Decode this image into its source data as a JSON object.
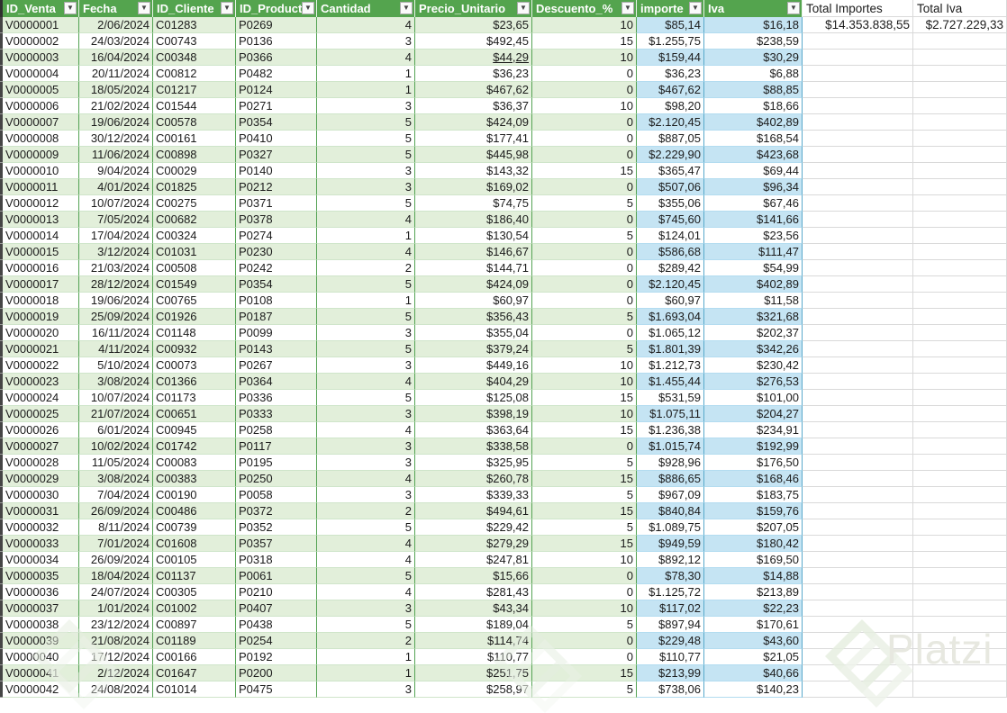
{
  "colors": {
    "header_green": "#54A44E",
    "band_green": "#E2EFDA",
    "band_blue": "#C5E4F3",
    "border_green": "#54A354",
    "border_blue": "#58A9CB",
    "grid_gray": "#D9D9D9"
  },
  "watermark": {
    "text": "Platzi"
  },
  "table": {
    "columns": [
      {
        "key": "edge",
        "label": "",
        "width": 3,
        "type": "edge",
        "align": "left",
        "filter": false
      },
      {
        "key": "id_venta",
        "label": "ID_Venta",
        "width": 85,
        "type": "green",
        "align": "left",
        "filter": true
      },
      {
        "key": "fecha",
        "label": "Fecha",
        "width": 82,
        "type": "green",
        "align": "right",
        "filter": true
      },
      {
        "key": "id_cliente",
        "label": "ID_Cliente",
        "width": 92,
        "type": "green",
        "align": "left",
        "filter": true
      },
      {
        "key": "id_producto",
        "label": "ID_Producto",
        "width": 90,
        "type": "green",
        "align": "left",
        "filter": true
      },
      {
        "key": "cantidad",
        "label": "Cantidad",
        "width": 109,
        "type": "green",
        "align": "right",
        "filter": true
      },
      {
        "key": "precio",
        "label": "Precio_Unitario",
        "width": 130,
        "type": "green",
        "align": "right",
        "filter": true
      },
      {
        "key": "descuento",
        "label": "Descuento_%",
        "width": 116,
        "type": "green",
        "align": "right",
        "filter": true
      },
      {
        "key": "importe",
        "label": "importe",
        "width": 75,
        "type": "blue",
        "align": "right",
        "filter": true
      },
      {
        "key": "iva",
        "label": "Iva",
        "width": 109,
        "type": "blue",
        "align": "right",
        "filter": true
      },
      {
        "key": "total_importes",
        "label": "Total Importes",
        "width": 123,
        "type": "total",
        "align": "left",
        "filter": false
      },
      {
        "key": "total_iva",
        "label": "Total Iva",
        "width": 104,
        "type": "total",
        "align": "left",
        "filter": false
      }
    ],
    "totals": {
      "total_importes": "$14.353.838,55",
      "total_iva": "$2.727.229,33"
    },
    "underline_cell": {
      "row": 2,
      "key": "precio"
    },
    "rows": [
      {
        "id_venta": "V0000001",
        "fecha": "2/06/2024",
        "id_cliente": "C01283",
        "id_producto": "P0269",
        "cantidad": "4",
        "precio": "$23,65",
        "descuento": "10",
        "importe": "$85,14",
        "iva": "$16,18"
      },
      {
        "id_venta": "V0000002",
        "fecha": "24/03/2024",
        "id_cliente": "C00743",
        "id_producto": "P0136",
        "cantidad": "3",
        "precio": "$492,45",
        "descuento": "15",
        "importe": "$1.255,75",
        "iva": "$238,59"
      },
      {
        "id_venta": "V0000003",
        "fecha": "16/04/2024",
        "id_cliente": "C00348",
        "id_producto": "P0366",
        "cantidad": "4",
        "precio": "$44,29",
        "descuento": "10",
        "importe": "$159,44",
        "iva": "$30,29"
      },
      {
        "id_venta": "V0000004",
        "fecha": "20/11/2024",
        "id_cliente": "C00812",
        "id_producto": "P0482",
        "cantidad": "1",
        "precio": "$36,23",
        "descuento": "0",
        "importe": "$36,23",
        "iva": "$6,88"
      },
      {
        "id_venta": "V0000005",
        "fecha": "18/05/2024",
        "id_cliente": "C01217",
        "id_producto": "P0124",
        "cantidad": "1",
        "precio": "$467,62",
        "descuento": "0",
        "importe": "$467,62",
        "iva": "$88,85"
      },
      {
        "id_venta": "V0000006",
        "fecha": "21/02/2024",
        "id_cliente": "C01544",
        "id_producto": "P0271",
        "cantidad": "3",
        "precio": "$36,37",
        "descuento": "10",
        "importe": "$98,20",
        "iva": "$18,66"
      },
      {
        "id_venta": "V0000007",
        "fecha": "19/06/2024",
        "id_cliente": "C00578",
        "id_producto": "P0354",
        "cantidad": "5",
        "precio": "$424,09",
        "descuento": "0",
        "importe": "$2.120,45",
        "iva": "$402,89"
      },
      {
        "id_venta": "V0000008",
        "fecha": "30/12/2024",
        "id_cliente": "C00161",
        "id_producto": "P0410",
        "cantidad": "5",
        "precio": "$177,41",
        "descuento": "0",
        "importe": "$887,05",
        "iva": "$168,54"
      },
      {
        "id_venta": "V0000009",
        "fecha": "11/06/2024",
        "id_cliente": "C00898",
        "id_producto": "P0327",
        "cantidad": "5",
        "precio": "$445,98",
        "descuento": "0",
        "importe": "$2.229,90",
        "iva": "$423,68"
      },
      {
        "id_venta": "V0000010",
        "fecha": "9/04/2024",
        "id_cliente": "C00029",
        "id_producto": "P0140",
        "cantidad": "3",
        "precio": "$143,32",
        "descuento": "15",
        "importe": "$365,47",
        "iva": "$69,44"
      },
      {
        "id_venta": "V0000011",
        "fecha": "4/01/2024",
        "id_cliente": "C01825",
        "id_producto": "P0212",
        "cantidad": "3",
        "precio": "$169,02",
        "descuento": "0",
        "importe": "$507,06",
        "iva": "$96,34"
      },
      {
        "id_venta": "V0000012",
        "fecha": "10/07/2024",
        "id_cliente": "C00275",
        "id_producto": "P0371",
        "cantidad": "5",
        "precio": "$74,75",
        "descuento": "5",
        "importe": "$355,06",
        "iva": "$67,46"
      },
      {
        "id_venta": "V0000013",
        "fecha": "7/05/2024",
        "id_cliente": "C00682",
        "id_producto": "P0378",
        "cantidad": "4",
        "precio": "$186,40",
        "descuento": "0",
        "importe": "$745,60",
        "iva": "$141,66"
      },
      {
        "id_venta": "V0000014",
        "fecha": "17/04/2024",
        "id_cliente": "C00324",
        "id_producto": "P0274",
        "cantidad": "1",
        "precio": "$130,54",
        "descuento": "5",
        "importe": "$124,01",
        "iva": "$23,56"
      },
      {
        "id_venta": "V0000015",
        "fecha": "3/12/2024",
        "id_cliente": "C01031",
        "id_producto": "P0230",
        "cantidad": "4",
        "precio": "$146,67",
        "descuento": "0",
        "importe": "$586,68",
        "iva": "$111,47"
      },
      {
        "id_venta": "V0000016",
        "fecha": "21/03/2024",
        "id_cliente": "C00508",
        "id_producto": "P0242",
        "cantidad": "2",
        "precio": "$144,71",
        "descuento": "0",
        "importe": "$289,42",
        "iva": "$54,99"
      },
      {
        "id_venta": "V0000017",
        "fecha": "28/12/2024",
        "id_cliente": "C01549",
        "id_producto": "P0354",
        "cantidad": "5",
        "precio": "$424,09",
        "descuento": "0",
        "importe": "$2.120,45",
        "iva": "$402,89"
      },
      {
        "id_venta": "V0000018",
        "fecha": "19/06/2024",
        "id_cliente": "C00765",
        "id_producto": "P0108",
        "cantidad": "1",
        "precio": "$60,97",
        "descuento": "0",
        "importe": "$60,97",
        "iva": "$11,58"
      },
      {
        "id_venta": "V0000019",
        "fecha": "25/09/2024",
        "id_cliente": "C01926",
        "id_producto": "P0187",
        "cantidad": "5",
        "precio": "$356,43",
        "descuento": "5",
        "importe": "$1.693,04",
        "iva": "$321,68"
      },
      {
        "id_venta": "V0000020",
        "fecha": "16/11/2024",
        "id_cliente": "C01148",
        "id_producto": "P0099",
        "cantidad": "3",
        "precio": "$355,04",
        "descuento": "0",
        "importe": "$1.065,12",
        "iva": "$202,37"
      },
      {
        "id_venta": "V0000021",
        "fecha": "4/11/2024",
        "id_cliente": "C00932",
        "id_producto": "P0143",
        "cantidad": "5",
        "precio": "$379,24",
        "descuento": "5",
        "importe": "$1.801,39",
        "iva": "$342,26"
      },
      {
        "id_venta": "V0000022",
        "fecha": "5/10/2024",
        "id_cliente": "C00073",
        "id_producto": "P0267",
        "cantidad": "3",
        "precio": "$449,16",
        "descuento": "10",
        "importe": "$1.212,73",
        "iva": "$230,42"
      },
      {
        "id_venta": "V0000023",
        "fecha": "3/08/2024",
        "id_cliente": "C01366",
        "id_producto": "P0364",
        "cantidad": "4",
        "precio": "$404,29",
        "descuento": "10",
        "importe": "$1.455,44",
        "iva": "$276,53"
      },
      {
        "id_venta": "V0000024",
        "fecha": "10/07/2024",
        "id_cliente": "C01173",
        "id_producto": "P0336",
        "cantidad": "5",
        "precio": "$125,08",
        "descuento": "15",
        "importe": "$531,59",
        "iva": "$101,00"
      },
      {
        "id_venta": "V0000025",
        "fecha": "21/07/2024",
        "id_cliente": "C00651",
        "id_producto": "P0333",
        "cantidad": "3",
        "precio": "$398,19",
        "descuento": "10",
        "importe": "$1.075,11",
        "iva": "$204,27"
      },
      {
        "id_venta": "V0000026",
        "fecha": "6/01/2024",
        "id_cliente": "C00945",
        "id_producto": "P0258",
        "cantidad": "4",
        "precio": "$363,64",
        "descuento": "15",
        "importe": "$1.236,38",
        "iva": "$234,91"
      },
      {
        "id_venta": "V0000027",
        "fecha": "10/02/2024",
        "id_cliente": "C01742",
        "id_producto": "P0117",
        "cantidad": "3",
        "precio": "$338,58",
        "descuento": "0",
        "importe": "$1.015,74",
        "iva": "$192,99"
      },
      {
        "id_venta": "V0000028",
        "fecha": "11/05/2024",
        "id_cliente": "C00083",
        "id_producto": "P0195",
        "cantidad": "3",
        "precio": "$325,95",
        "descuento": "5",
        "importe": "$928,96",
        "iva": "$176,50"
      },
      {
        "id_venta": "V0000029",
        "fecha": "3/08/2024",
        "id_cliente": "C00383",
        "id_producto": "P0250",
        "cantidad": "4",
        "precio": "$260,78",
        "descuento": "15",
        "importe": "$886,65",
        "iva": "$168,46"
      },
      {
        "id_venta": "V0000030",
        "fecha": "7/04/2024",
        "id_cliente": "C00190",
        "id_producto": "P0058",
        "cantidad": "3",
        "precio": "$339,33",
        "descuento": "5",
        "importe": "$967,09",
        "iva": "$183,75"
      },
      {
        "id_venta": "V0000031",
        "fecha": "26/09/2024",
        "id_cliente": "C00486",
        "id_producto": "P0372",
        "cantidad": "2",
        "precio": "$494,61",
        "descuento": "15",
        "importe": "$840,84",
        "iva": "$159,76"
      },
      {
        "id_venta": "V0000032",
        "fecha": "8/11/2024",
        "id_cliente": "C00739",
        "id_producto": "P0352",
        "cantidad": "5",
        "precio": "$229,42",
        "descuento": "5",
        "importe": "$1.089,75",
        "iva": "$207,05"
      },
      {
        "id_venta": "V0000033",
        "fecha": "7/01/2024",
        "id_cliente": "C01608",
        "id_producto": "P0357",
        "cantidad": "4",
        "precio": "$279,29",
        "descuento": "15",
        "importe": "$949,59",
        "iva": "$180,42"
      },
      {
        "id_venta": "V0000034",
        "fecha": "26/09/2024",
        "id_cliente": "C00105",
        "id_producto": "P0318",
        "cantidad": "4",
        "precio": "$247,81",
        "descuento": "10",
        "importe": "$892,12",
        "iva": "$169,50"
      },
      {
        "id_venta": "V0000035",
        "fecha": "18/04/2024",
        "id_cliente": "C01137",
        "id_producto": "P0061",
        "cantidad": "5",
        "precio": "$15,66",
        "descuento": "0",
        "importe": "$78,30",
        "iva": "$14,88"
      },
      {
        "id_venta": "V0000036",
        "fecha": "24/07/2024",
        "id_cliente": "C00305",
        "id_producto": "P0210",
        "cantidad": "4",
        "precio": "$281,43",
        "descuento": "0",
        "importe": "$1.125,72",
        "iva": "$213,89"
      },
      {
        "id_venta": "V0000037",
        "fecha": "1/01/2024",
        "id_cliente": "C01002",
        "id_producto": "P0407",
        "cantidad": "3",
        "precio": "$43,34",
        "descuento": "10",
        "importe": "$117,02",
        "iva": "$22,23"
      },
      {
        "id_venta": "V0000038",
        "fecha": "23/12/2024",
        "id_cliente": "C00897",
        "id_producto": "P0438",
        "cantidad": "5",
        "precio": "$189,04",
        "descuento": "5",
        "importe": "$897,94",
        "iva": "$170,61"
      },
      {
        "id_venta": "V0000039",
        "fecha": "21/08/2024",
        "id_cliente": "C01189",
        "id_producto": "P0254",
        "cantidad": "2",
        "precio": "$114,74",
        "descuento": "0",
        "importe": "$229,48",
        "iva": "$43,60"
      },
      {
        "id_venta": "V0000040",
        "fecha": "17/12/2024",
        "id_cliente": "C00166",
        "id_producto": "P0192",
        "cantidad": "1",
        "precio": "$110,77",
        "descuento": "0",
        "importe": "$110,77",
        "iva": "$21,05"
      },
      {
        "id_venta": "V0000041",
        "fecha": "2/12/2024",
        "id_cliente": "C01647",
        "id_producto": "P0200",
        "cantidad": "1",
        "precio": "$251,75",
        "descuento": "15",
        "importe": "$213,99",
        "iva": "$40,66"
      },
      {
        "id_venta": "V0000042",
        "fecha": "24/08/2024",
        "id_cliente": "C01014",
        "id_producto": "P0475",
        "cantidad": "3",
        "precio": "$258,97",
        "descuento": "5",
        "importe": "$738,06",
        "iva": "$140,23"
      }
    ]
  }
}
